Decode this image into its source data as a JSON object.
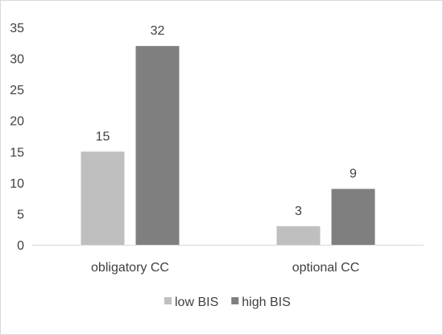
{
  "chart_data": {
    "type": "bar",
    "categories": [
      "obligatory CC",
      "optional CC"
    ],
    "series": [
      {
        "name": "low BIS",
        "values": [
          15,
          3
        ],
        "color": "#bfbfbf"
      },
      {
        "name": "high BIS",
        "values": [
          32,
          9
        ],
        "color": "#7f7f7f"
      }
    ],
    "ylim": [
      0,
      35
    ],
    "yticks": [
      0,
      5,
      10,
      15,
      20,
      25,
      30,
      35
    ],
    "grid": false,
    "legend_position": "bottom",
    "data_labels": true
  }
}
